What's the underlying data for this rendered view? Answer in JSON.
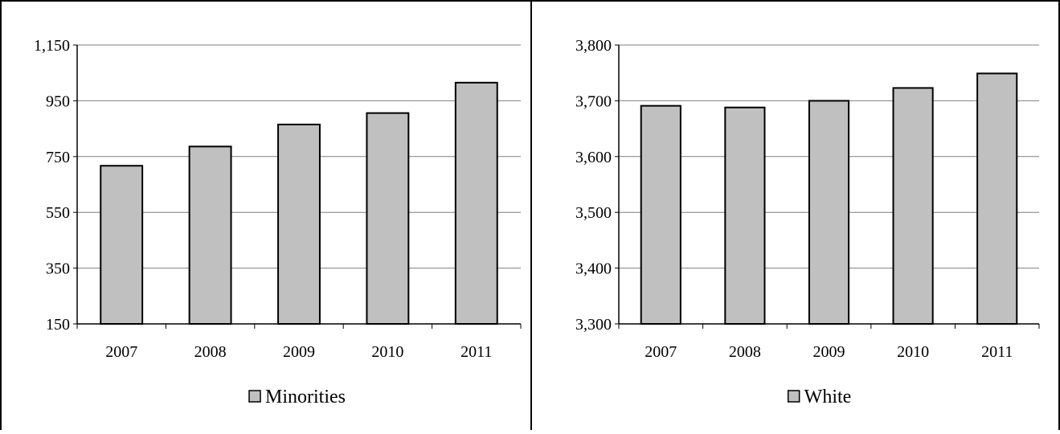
{
  "chart_data": [
    {
      "type": "bar",
      "title": "",
      "xlabel": "",
      "ylabel": "",
      "categories": [
        "2007",
        "2008",
        "2009",
        "2010",
        "2011"
      ],
      "series": [
        {
          "name": "Minorities",
          "values": [
            717,
            786,
            865,
            906,
            1015
          ]
        }
      ],
      "ylim": [
        150,
        1150
      ],
      "yticks": [
        150,
        350,
        550,
        750,
        950,
        1150
      ],
      "ytick_labels": [
        "150",
        "350",
        "550",
        "750",
        "950",
        "1,150"
      ],
      "grid": true,
      "legend_position": "bottom",
      "bar_color": "#c0c0c0"
    },
    {
      "type": "bar",
      "title": "",
      "xlabel": "",
      "ylabel": "",
      "categories": [
        "2007",
        "2008",
        "2009",
        "2010",
        "2011"
      ],
      "series": [
        {
          "name": "White",
          "values": [
            3691,
            3688,
            3700,
            3723,
            3749
          ]
        }
      ],
      "ylim": [
        3300,
        3800
      ],
      "yticks": [
        3300,
        3400,
        3500,
        3600,
        3700,
        3800
      ],
      "ytick_labels": [
        "3,300",
        "3,400",
        "3,500",
        "3,600",
        "3,700",
        "3,800"
      ],
      "grid": true,
      "legend_position": "bottom",
      "bar_color": "#c0c0c0"
    }
  ]
}
